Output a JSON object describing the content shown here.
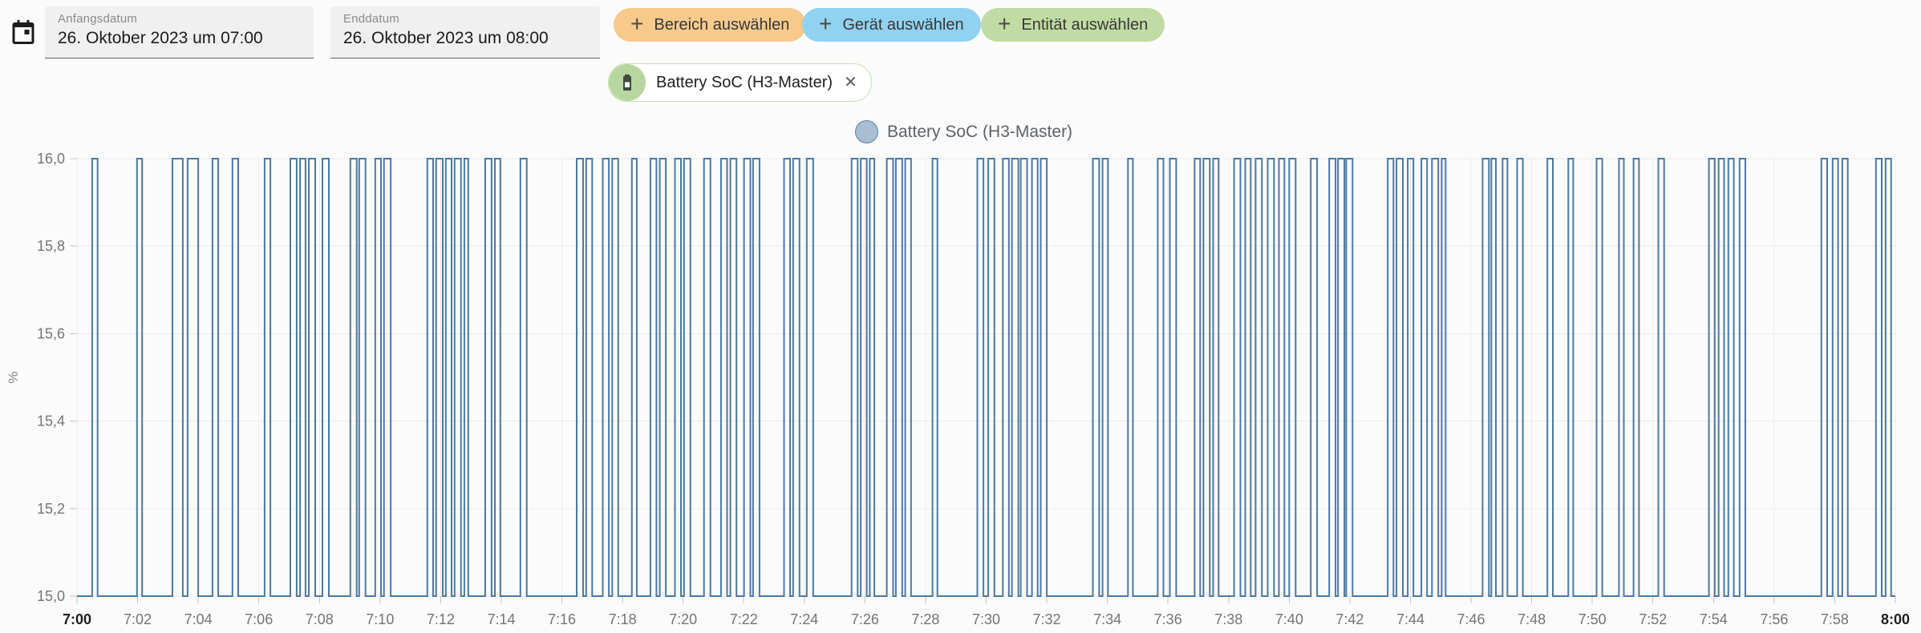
{
  "header": {
    "start_date": {
      "label": "Anfangsdatum",
      "value": "26. Oktober 2023 um 07:00"
    },
    "end_date": {
      "label": "Enddatum",
      "value": "26. Oktober 2023 um 08:00"
    },
    "filter_chips": [
      {
        "label": "Bereich auswählen",
        "icon": "plus-icon",
        "bg": "#f7c98a",
        "plus": "+"
      },
      {
        "label": "Gerät auswählen",
        "icon": "plus-icon",
        "bg": "#90d2ef",
        "plus": "+"
      },
      {
        "label": "Entität auswählen",
        "icon": "plus-icon",
        "bg": "#c0dba3",
        "plus": "+"
      }
    ],
    "entity_chip": {
      "label": "Battery SoC (H3-Master)",
      "icon": "battery-icon",
      "remove": "✕"
    }
  },
  "legend": {
    "label": "Battery SoC (H3-Master)",
    "dot_fill": "#a9bed2",
    "dot_border": "#5e87ab"
  },
  "chart_data": {
    "type": "line",
    "style": "square-step",
    "title": "",
    "xlabel": "",
    "ylabel": "%",
    "unit": "%",
    "grid": true,
    "legend_position": "top-center",
    "y_axis": {
      "min": 15.0,
      "max": 16.0,
      "tick_step": 0.2,
      "tick_labels": [
        "15,0",
        "15,2",
        "15,4",
        "15,6",
        "15,8",
        "16,0"
      ]
    },
    "x_axis": {
      "start": "7:00",
      "end": "8:00",
      "tick_interval_min": 2,
      "tick_labels": [
        "7:00",
        "7:02",
        "7:04",
        "7:06",
        "7:08",
        "7:10",
        "7:12",
        "7:14",
        "7:16",
        "7:18",
        "7:20",
        "7:22",
        "7:24",
        "7:26",
        "7:28",
        "7:30",
        "7:32",
        "7:34",
        "7:36",
        "7:38",
        "7:40",
        "7:42",
        "7:44",
        "7:46",
        "7:48",
        "7:50",
        "7:52",
        "7:54",
        "7:56",
        "7:58",
        "8:00"
      ]
    },
    "series": [
      {
        "name": "Battery SoC (H3-Master)",
        "baseline_value": 15,
        "pulse_value": 16,
        "pulses_minutes_after_7am": [
          [
            0.5,
            0.68
          ],
          [
            1.98,
            2.15
          ],
          [
            3.15,
            3.49
          ],
          [
            3.65,
            4.0
          ],
          [
            4.47,
            4.66
          ],
          [
            5.13,
            5.32
          ],
          [
            6.19,
            6.38
          ],
          [
            7.04,
            7.25
          ],
          [
            7.36,
            7.54
          ],
          [
            7.65,
            7.86
          ],
          [
            8.1,
            8.31
          ],
          [
            9.02,
            9.23
          ],
          [
            9.31,
            9.52
          ],
          [
            9.84,
            10.03
          ],
          [
            10.13,
            10.35
          ],
          [
            11.56,
            11.75
          ],
          [
            11.85,
            12.07
          ],
          [
            12.17,
            12.36
          ],
          [
            12.46,
            12.67
          ],
          [
            12.78,
            12.91
          ],
          [
            13.47,
            13.68
          ],
          [
            13.79,
            13.97
          ],
          [
            14.63,
            14.84
          ],
          [
            16.49,
            16.7
          ],
          [
            16.8,
            17.0
          ],
          [
            17.35,
            17.55
          ],
          [
            17.66,
            17.86
          ],
          [
            18.31,
            18.47
          ],
          [
            18.92,
            19.12
          ],
          [
            19.23,
            19.43
          ],
          [
            19.73,
            19.93
          ],
          [
            20.03,
            20.24
          ],
          [
            20.69,
            20.9
          ],
          [
            21.25,
            21.45
          ],
          [
            21.56,
            21.76
          ],
          [
            22.01,
            22.22
          ],
          [
            22.31,
            22.52
          ],
          [
            23.33,
            23.53
          ],
          [
            23.63,
            23.84
          ],
          [
            24.08,
            24.29
          ],
          [
            25.56,
            25.76
          ],
          [
            25.86,
            26.06
          ],
          [
            26.16,
            26.31
          ],
          [
            26.72,
            26.93
          ],
          [
            27.02,
            27.23
          ],
          [
            27.33,
            27.52
          ],
          [
            28.23,
            28.39
          ],
          [
            29.71,
            29.91
          ],
          [
            30.07,
            30.27
          ],
          [
            30.55,
            30.75
          ],
          [
            30.85,
            31.06
          ],
          [
            31.14,
            31.35
          ],
          [
            31.51,
            31.7
          ],
          [
            31.8,
            32.0
          ],
          [
            33.52,
            33.73
          ],
          [
            33.84,
            34.02
          ],
          [
            34.68,
            34.84
          ],
          [
            35.66,
            35.85
          ],
          [
            36.06,
            36.27
          ],
          [
            36.88,
            37.06
          ],
          [
            37.17,
            37.38
          ],
          [
            37.49,
            37.67
          ],
          [
            38.18,
            38.39
          ],
          [
            38.55,
            38.73
          ],
          [
            38.89,
            39.1
          ],
          [
            39.29,
            39.5
          ],
          [
            39.66,
            39.84
          ],
          [
            40.0,
            40.21
          ],
          [
            40.71,
            40.92
          ],
          [
            41.32,
            41.53
          ],
          [
            41.61,
            41.82
          ],
          [
            41.88,
            42.09
          ],
          [
            43.25,
            43.44
          ],
          [
            43.54,
            43.75
          ],
          [
            43.91,
            44.1
          ],
          [
            44.36,
            44.55
          ],
          [
            44.71,
            44.92
          ],
          [
            45.03,
            45.16
          ],
          [
            46.38,
            46.59
          ],
          [
            46.67,
            46.82
          ],
          [
            47.04,
            47.2
          ],
          [
            47.52,
            47.71
          ],
          [
            48.52,
            48.7
          ],
          [
            49.21,
            49.37
          ],
          [
            50.14,
            50.33
          ],
          [
            50.88,
            51.04
          ],
          [
            51.36,
            51.54
          ],
          [
            52.18,
            52.37
          ],
          [
            53.85,
            54.04
          ],
          [
            54.17,
            54.35
          ],
          [
            54.49,
            54.67
          ],
          [
            54.86,
            55.05
          ],
          [
            57.56,
            57.75
          ],
          [
            57.93,
            58.11
          ],
          [
            58.25,
            58.43
          ],
          [
            59.36,
            59.55
          ],
          [
            59.68,
            59.86
          ]
        ]
      }
    ],
    "colors": {
      "line": "#4b79a3",
      "grid": "#ececec",
      "tick": "#c4c4c4"
    }
  }
}
